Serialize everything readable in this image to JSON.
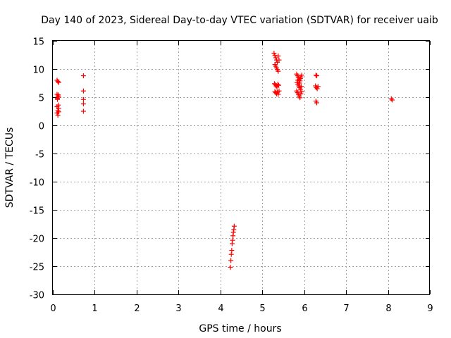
{
  "chart_data": {
    "type": "scatter",
    "title": "Day 140 of 2023, Sidereal Day-to-day VTEC variation (SDTVAR) for receiver uaib",
    "xlabel": "GPS time / hours",
    "ylabel": "SDTVAR / TECUs",
    "xlim": [
      0,
      9
    ],
    "ylim": [
      -30,
      15
    ],
    "xticks": [
      0,
      1,
      2,
      3,
      4,
      5,
      6,
      7,
      8,
      9
    ],
    "yticks": [
      -30,
      -25,
      -20,
      -15,
      -10,
      -5,
      0,
      5,
      10,
      15
    ],
    "grid": true,
    "marker": "+",
    "series": [
      {
        "name": "SDTVAR",
        "color": "#ff0000",
        "points": [
          [
            0.1,
            8.0
          ],
          [
            0.12,
            7.8
          ],
          [
            0.14,
            7.6
          ],
          [
            0.1,
            5.5
          ],
          [
            0.12,
            5.2
          ],
          [
            0.14,
            5.0
          ],
          [
            0.11,
            4.6
          ],
          [
            0.13,
            3.6
          ],
          [
            0.1,
            3.3
          ],
          [
            0.14,
            3.0
          ],
          [
            0.12,
            2.6
          ],
          [
            0.1,
            2.2
          ],
          [
            0.12,
            1.8
          ],
          [
            0.14,
            2.4
          ],
          [
            0.11,
            4.8
          ],
          [
            0.13,
            5.4
          ],
          [
            0.73,
            8.8
          ],
          [
            0.73,
            6.1
          ],
          [
            0.73,
            4.6
          ],
          [
            0.73,
            3.8
          ],
          [
            0.73,
            2.5
          ],
          [
            4.24,
            -25.2
          ],
          [
            4.25,
            -24.0
          ],
          [
            4.26,
            -22.9
          ],
          [
            4.27,
            -22.2
          ],
          [
            4.28,
            -21.0
          ],
          [
            4.29,
            -20.4
          ],
          [
            4.3,
            -19.6
          ],
          [
            4.31,
            -19.0
          ],
          [
            4.32,
            -18.5
          ],
          [
            4.33,
            -17.9
          ],
          [
            5.28,
            12.8
          ],
          [
            5.3,
            12.4
          ],
          [
            5.32,
            12.0
          ],
          [
            5.34,
            11.6
          ],
          [
            5.36,
            11.2
          ],
          [
            5.3,
            10.8
          ],
          [
            5.32,
            10.5
          ],
          [
            5.34,
            10.2
          ],
          [
            5.36,
            9.9
          ],
          [
            5.38,
            9.6
          ],
          [
            5.4,
            11.6
          ],
          [
            5.38,
            12.3
          ],
          [
            5.29,
            7.4
          ],
          [
            5.31,
            7.2
          ],
          [
            5.33,
            7.0
          ],
          [
            5.35,
            6.8
          ],
          [
            5.37,
            7.3
          ],
          [
            5.39,
            7.1
          ],
          [
            5.3,
            6.0
          ],
          [
            5.32,
            5.8
          ],
          [
            5.34,
            5.6
          ],
          [
            5.36,
            5.9
          ],
          [
            5.38,
            5.5
          ],
          [
            5.4,
            6.1
          ],
          [
            5.82,
            9.1
          ],
          [
            5.84,
            8.8
          ],
          [
            5.86,
            8.5
          ],
          [
            5.88,
            8.2
          ],
          [
            5.9,
            7.9
          ],
          [
            5.92,
            8.6
          ],
          [
            5.94,
            8.9
          ],
          [
            5.83,
            7.6
          ],
          [
            5.85,
            7.3
          ],
          [
            5.87,
            7.0
          ],
          [
            5.89,
            6.7
          ],
          [
            5.91,
            6.4
          ],
          [
            5.93,
            6.9
          ],
          [
            5.82,
            6.1
          ],
          [
            5.84,
            5.8
          ],
          [
            5.86,
            5.5
          ],
          [
            5.88,
            5.2
          ],
          [
            5.9,
            4.9
          ],
          [
            5.92,
            5.6
          ],
          [
            5.94,
            6.0
          ],
          [
            5.85,
            8.0
          ],
          [
            5.89,
            7.5
          ],
          [
            5.91,
            8.3
          ],
          [
            6.28,
            8.9
          ],
          [
            6.3,
            8.8
          ],
          [
            6.27,
            7.0
          ],
          [
            6.29,
            6.7
          ],
          [
            6.31,
            6.5
          ],
          [
            6.33,
            6.9
          ],
          [
            6.28,
            4.3
          ],
          [
            6.3,
            4.0
          ],
          [
            8.08,
            4.7
          ],
          [
            8.1,
            4.5
          ]
        ]
      }
    ]
  }
}
